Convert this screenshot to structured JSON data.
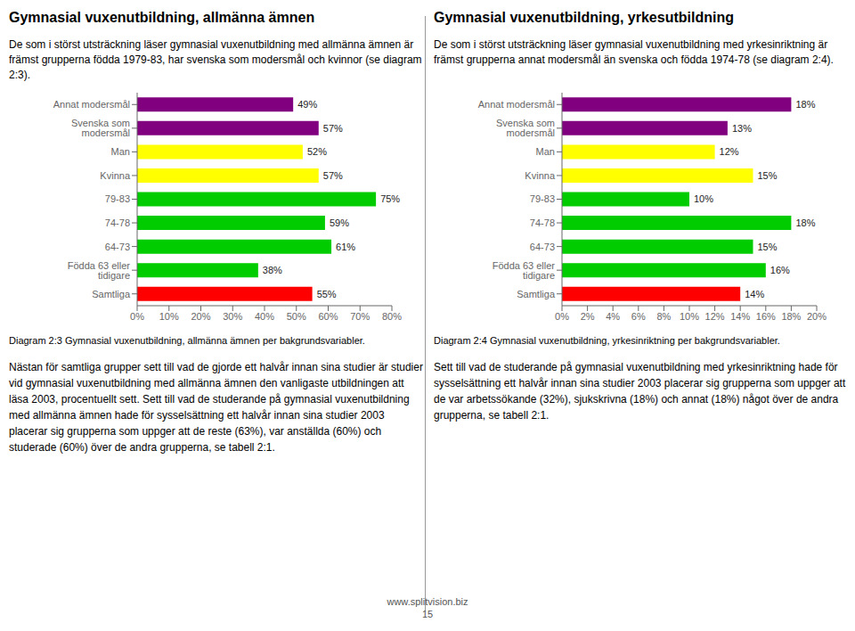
{
  "chart_data": [
    {
      "type": "bar",
      "orientation": "horizontal",
      "title": "Gymnasial vuxenutbildning, allmänna ämnen",
      "subtitle": "De som i störst utsträckning läser gymnasial vuxenutbildning med allmänna ämnen är främst grupperna födda 1979-83, har svenska som modersmål och kvinnor (se diagram 2:3).",
      "categories": [
        "Annat modersmål",
        "Svenska som modersmål",
        "Man",
        "Kvinna",
        "79-83",
        "74-78",
        "64-73",
        "Födda 63 eller tidigare",
        "Samtliga"
      ],
      "values": [
        49,
        57,
        52,
        57,
        75,
        59,
        61,
        38,
        55
      ],
      "value_labels": [
        "49%",
        "57%",
        "52%",
        "57%",
        "75%",
        "59%",
        "61%",
        "38%",
        "55%"
      ],
      "data_labels": true,
      "colors": [
        "#800080",
        "#800080",
        "#ffff00",
        "#ffff00",
        "#00cc00",
        "#00cc00",
        "#00cc00",
        "#00cc00",
        "#ff0000"
      ],
      "xlim": [
        0,
        80
      ],
      "xticks": [
        {
          "value": 0,
          "label": "0%"
        },
        {
          "value": 10,
          "label": "10%"
        },
        {
          "value": 20,
          "label": "20%"
        },
        {
          "value": 30,
          "label": "30%"
        },
        {
          "value": 40,
          "label": "40%"
        },
        {
          "value": 50,
          "label": "50%"
        },
        {
          "value": 60,
          "label": "60%"
        },
        {
          "value": 70,
          "label": "70%"
        },
        {
          "value": 80,
          "label": "80%"
        }
      ],
      "grid": false,
      "annotations": [
        "Diagram 2:3 Gymnasial vuxenutbildning, allmänna ämnen per bakgrundsvariabler.",
        "Nästan för samtliga grupper sett till vad de gjorde ett halvår innan sina studier är studier vid gymnasial vuxenutbildning med allmänna ämnen den vanligaste utbildningen att läsa 2003, procentuellt sett. Sett till vad de studerande på gymnasial vuxenutbildning med allmänna ämnen hade för sysselsättning ett halvår innan sina studier 2003 placerar sig grupperna som uppger att de reste (63%), var anställda (60%) och studerade (60%) över de andra grupperna, se tabell 2:1."
      ]
    },
    {
      "type": "bar",
      "orientation": "horizontal",
      "title": "Gymnasial vuxenutbildning, yrkesutbildning",
      "subtitle": "De som i störst utsträckning läser gymnasial vuxenutbildning med yrkesinriktning är främst grupperna annat modersmål än svenska och födda 1974-78 (se diagram 2:4).",
      "categories": [
        "Annat modersmål",
        "Svenska som modersmål",
        "Man",
        "Kvinna",
        "79-83",
        "74-78",
        "64-73",
        "Födda 63 eller tidigare",
        "Samtliga"
      ],
      "values": [
        18,
        13,
        12,
        15,
        10,
        18,
        15,
        16,
        14
      ],
      "value_labels": [
        "18%",
        "13%",
        "12%",
        "15%",
        "10%",
        "18%",
        "15%",
        "16%",
        "14%"
      ],
      "data_labels": true,
      "colors": [
        "#800080",
        "#800080",
        "#ffff00",
        "#ffff00",
        "#00cc00",
        "#00cc00",
        "#00cc00",
        "#00cc00",
        "#ff0000"
      ],
      "xlim": [
        0,
        20
      ],
      "xticks": [
        {
          "value": 0,
          "label": "0%"
        },
        {
          "value": 2,
          "label": "2%"
        },
        {
          "value": 4,
          "label": "4%"
        },
        {
          "value": 6,
          "label": "6%"
        },
        {
          "value": 8,
          "label": "8%"
        },
        {
          "value": 10,
          "label": "10%"
        },
        {
          "value": 12,
          "label": "12%"
        },
        {
          "value": 14,
          "label": "14%"
        },
        {
          "value": 16,
          "label": "16%"
        },
        {
          "value": 18,
          "label": "18%"
        },
        {
          "value": 20,
          "label": "20%"
        }
      ],
      "grid": false,
      "annotations": [
        "Diagram 2:4 Gymnasial vuxenutbildning, yrkesinriktning per bakgrundsvariabler.",
        "Sett till vad de studerande på gymnasial vuxenutbildning med yrkesinriktning hade för sysselsättning ett halvår innan sina studier 2003 placerar sig grupperna som uppger att de var arbetssökande (32%), sjukskrivna (18%) och annat (18%) något över de andra grupperna, se tabell 2:1."
      ]
    }
  ],
  "annotations": [
    "www.splitvision.biz",
    "15"
  ]
}
